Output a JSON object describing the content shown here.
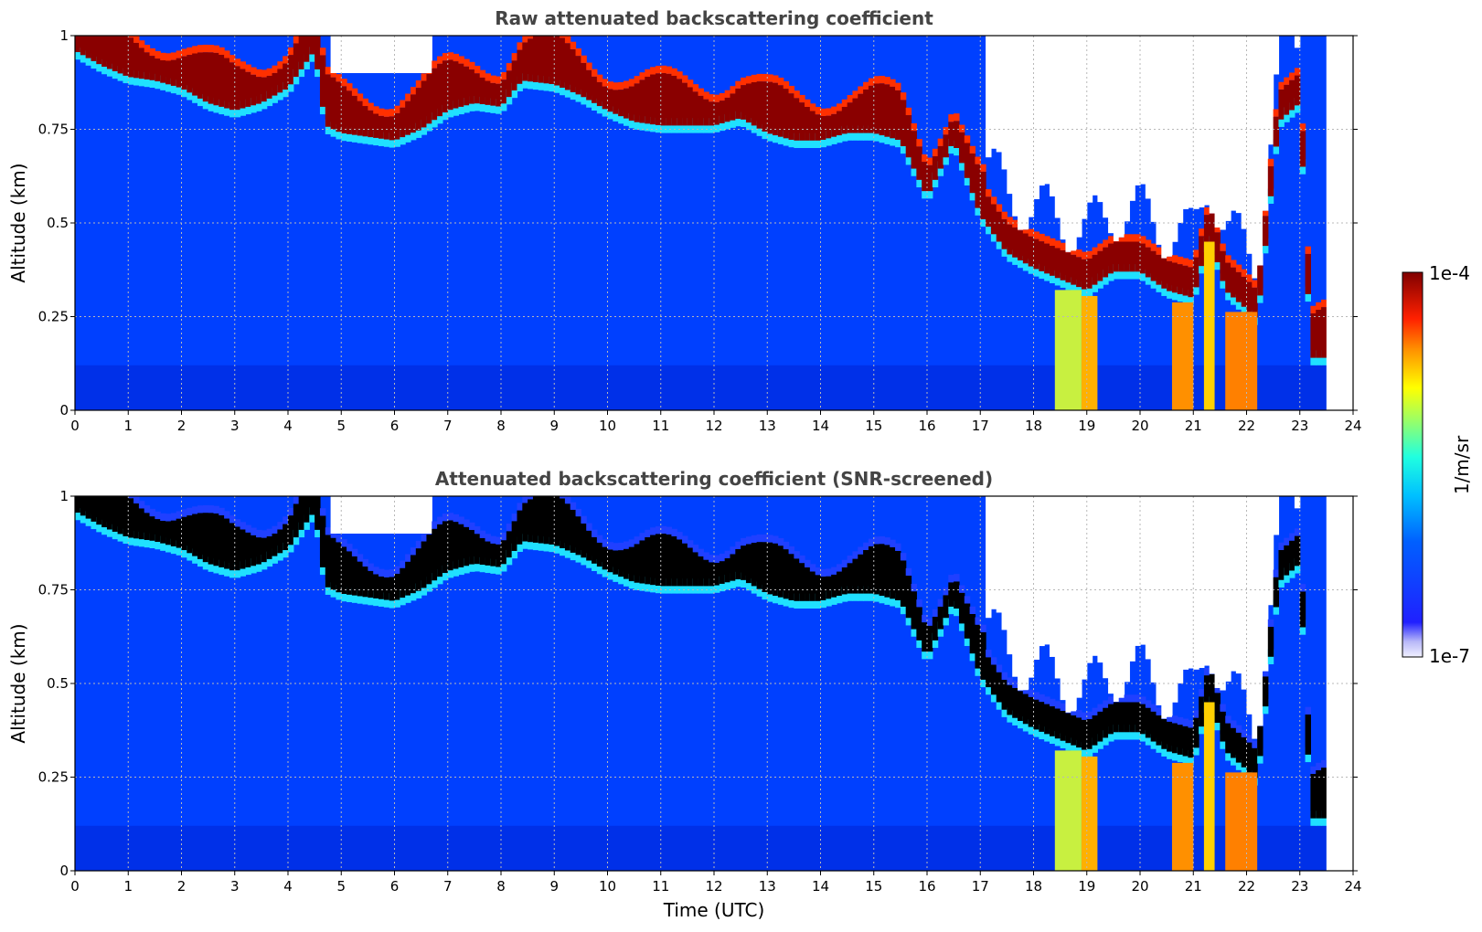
{
  "chart_data": [
    {
      "type": "heatmap",
      "title": "Raw attenuated backscattering coefficient",
      "xlabel": "",
      "ylabel": "Altitude (km)",
      "xlim": [
        0,
        24
      ],
      "ylim": [
        0,
        1
      ],
      "xticks": [
        "0",
        "1",
        "2",
        "3",
        "4",
        "5",
        "6",
        "7",
        "8",
        "9",
        "10",
        "11",
        "12",
        "13",
        "14",
        "15",
        "16",
        "17",
        "18",
        "19",
        "20",
        "21",
        "22",
        "23",
        "24"
      ],
      "yticks": [
        "0",
        "0.25",
        "0.5",
        "0.75",
        "1"
      ],
      "grid": true,
      "colorscale": "jet",
      "cloud_base_km": {
        "time_utc": [
          0,
          0.5,
          1,
          1.5,
          2,
          2.5,
          3,
          3.5,
          4,
          4.5,
          4.7,
          5,
          5.5,
          6,
          6.5,
          7,
          7.5,
          8,
          8.4,
          9,
          9.5,
          10,
          10.5,
          11,
          11.5,
          12,
          12.5,
          13,
          13.5,
          14,
          14.5,
          15,
          15.5,
          16,
          16.5,
          17,
          17.5,
          18,
          18.5,
          19,
          19.5,
          20,
          20.5,
          21,
          21.3,
          21.6,
          22,
          22.2,
          22.6,
          23,
          23.2,
          23.5
        ],
        "base_km": [
          0.94,
          0.9,
          0.87,
          0.86,
          0.84,
          0.8,
          0.78,
          0.8,
          0.84,
          0.94,
          0.74,
          0.72,
          0.71,
          0.7,
          0.73,
          0.78,
          0.8,
          0.79,
          0.86,
          0.85,
          0.82,
          0.78,
          0.75,
          0.74,
          0.74,
          0.74,
          0.76,
          0.72,
          0.7,
          0.7,
          0.72,
          0.72,
          0.7,
          0.55,
          0.7,
          0.5,
          0.4,
          0.36,
          0.33,
          0.3,
          0.35,
          0.35,
          0.3,
          0.28,
          0.45,
          0.3,
          0.25,
          0.22,
          0.75,
          0.8,
          0.12,
          0.12
        ]
      }
    },
    {
      "type": "heatmap",
      "title": "Attenuated backscattering coefficient (SNR-screened)",
      "xlabel": "Time (UTC)",
      "ylabel": "Altitude (km)",
      "xlim": [
        0,
        24
      ],
      "ylim": [
        0,
        1
      ],
      "xticks": [
        "0",
        "1",
        "2",
        "3",
        "4",
        "5",
        "6",
        "7",
        "8",
        "9",
        "10",
        "11",
        "12",
        "13",
        "14",
        "15",
        "16",
        "17",
        "18",
        "19",
        "20",
        "21",
        "22",
        "23",
        "24"
      ],
      "yticks": [
        "0",
        "0.25",
        "0.5",
        "0.75",
        "1"
      ],
      "grid": true,
      "colorscale": "jet",
      "saturated_color": "#000000"
    }
  ],
  "colorbar": {
    "label": "1/m/sr",
    "max_label": "1e-4",
    "min_label": "1e-7",
    "scale": "log",
    "range": [
      1e-07,
      0.0001
    ]
  }
}
